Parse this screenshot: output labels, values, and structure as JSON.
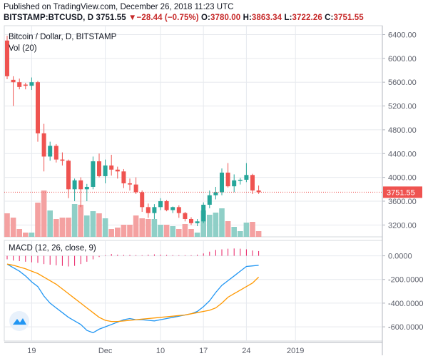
{
  "header": {
    "published": "Published on TradingView.com, December 26, 2018 11:23 UTC",
    "symbol": "BITSTAMP:BTCUSD, D",
    "last": "3751.55",
    "change_arrow": "▼",
    "change": "−28.44 (−0.75%)",
    "o_label": "O:",
    "o_value": "3780.00",
    "h_label": "H:",
    "h_value": "3863.34",
    "l_label": "L:",
    "l_value": "3722.26",
    "c_label": "C:",
    "c_value": "3751.55"
  },
  "colors": {
    "up": "#26a69a",
    "down": "#ef5350",
    "vol_up": "#8fcfc7",
    "vol_down": "#f4a1a1",
    "macd_line": "#2196f3",
    "signal_line": "#ff9800",
    "histogram": "#e91e63",
    "grid": "#e6e9ee",
    "axis_text": "#5d606b",
    "last_price_bg": "#ef5350"
  },
  "chart_data": [
    {
      "type": "candlestick",
      "title": "Bitcoin / Dollar, D, BITSTAMP",
      "volume_label": "Vol (20)",
      "last_price_label": "3751.55",
      "ylim": [
        3000,
        6550
      ],
      "y_ticks": [
        3200,
        3600,
        4000,
        4400,
        4800,
        5200,
        5600,
        6000,
        6400
      ],
      "y_tick_labels": [
        "3200.00",
        "3600.00",
        "4000.00",
        "4400.00",
        "4800.00",
        "5200.00",
        "5600.00",
        "6000.00",
        "6400.00"
      ],
      "x_tick_labels": [
        "19",
        "Dec",
        "10",
        "17",
        "24",
        "2019"
      ],
      "x_tick_index": [
        4,
        16,
        25,
        32,
        39,
        47
      ],
      "grid": true,
      "candles": [
        {
          "o": 6300,
          "h": 6380,
          "l": 5650,
          "c": 5700
        },
        {
          "o": 5640,
          "h": 5700,
          "l": 5200,
          "c": 5600
        },
        {
          "o": 5600,
          "h": 5660,
          "l": 5480,
          "c": 5520
        },
        {
          "o": 5560,
          "h": 5590,
          "l": 5480,
          "c": 5540
        },
        {
          "o": 5540,
          "h": 5680,
          "l": 5470,
          "c": 5600
        },
        {
          "o": 5600,
          "h": 5620,
          "l": 4600,
          "c": 4740
        },
        {
          "o": 4740,
          "h": 4900,
          "l": 4100,
          "c": 4350
        },
        {
          "o": 4350,
          "h": 4600,
          "l": 4280,
          "c": 4530
        },
        {
          "o": 4530,
          "h": 4560,
          "l": 4250,
          "c": 4300
        },
        {
          "o": 4300,
          "h": 4420,
          "l": 4200,
          "c": 4280
        },
        {
          "o": 4280,
          "h": 4300,
          "l": 3650,
          "c": 3800
        },
        {
          "o": 3800,
          "h": 3980,
          "l": 3600,
          "c": 3950
        },
        {
          "o": 3950,
          "h": 4000,
          "l": 3500,
          "c": 3800
        },
        {
          "o": 3800,
          "h": 3890,
          "l": 3600,
          "c": 3840
        },
        {
          "o": 3840,
          "h": 4350,
          "l": 3800,
          "c": 4270
        },
        {
          "o": 4270,
          "h": 4400,
          "l": 4000,
          "c": 4020
        },
        {
          "o": 4020,
          "h": 4300,
          "l": 3900,
          "c": 4200
        },
        {
          "o": 4200,
          "h": 4380,
          "l": 4030,
          "c": 4130
        },
        {
          "o": 4130,
          "h": 4180,
          "l": 3980,
          "c": 4100
        },
        {
          "o": 4100,
          "h": 4140,
          "l": 3820,
          "c": 3900
        },
        {
          "o": 3900,
          "h": 3980,
          "l": 3780,
          "c": 3880
        },
        {
          "o": 3880,
          "h": 4000,
          "l": 3720,
          "c": 3750
        },
        {
          "o": 3750,
          "h": 3780,
          "l": 3420,
          "c": 3500
        },
        {
          "o": 3500,
          "h": 3560,
          "l": 3320,
          "c": 3400
        },
        {
          "o": 3400,
          "h": 3550,
          "l": 3300,
          "c": 3500
        },
        {
          "o": 3500,
          "h": 3650,
          "l": 3450,
          "c": 3600
        },
        {
          "o": 3600,
          "h": 3620,
          "l": 3430,
          "c": 3450
        },
        {
          "o": 3450,
          "h": 3510,
          "l": 3400,
          "c": 3500
        },
        {
          "o": 3500,
          "h": 3530,
          "l": 3320,
          "c": 3400
        },
        {
          "o": 3400,
          "h": 3420,
          "l": 3260,
          "c": 3300
        },
        {
          "o": 3300,
          "h": 3330,
          "l": 3200,
          "c": 3230
        },
        {
          "o": 3230,
          "h": 3300,
          "l": 3180,
          "c": 3260
        },
        {
          "o": 3260,
          "h": 3580,
          "l": 3230,
          "c": 3540
        },
        {
          "o": 3540,
          "h": 3780,
          "l": 3480,
          "c": 3700
        },
        {
          "o": 3700,
          "h": 3840,
          "l": 3630,
          "c": 3750
        },
        {
          "o": 3750,
          "h": 4150,
          "l": 3700,
          "c": 4080
        },
        {
          "o": 4080,
          "h": 4240,
          "l": 3830,
          "c": 3850
        },
        {
          "o": 3850,
          "h": 4050,
          "l": 3750,
          "c": 3950
        },
        {
          "o": 3950,
          "h": 3990,
          "l": 3880,
          "c": 3960
        },
        {
          "o": 3960,
          "h": 4240,
          "l": 3920,
          "c": 4040
        },
        {
          "o": 4040,
          "h": 4060,
          "l": 3720,
          "c": 3780
        },
        {
          "o": 3780,
          "h": 3863,
          "l": 3722,
          "c": 3751
        }
      ],
      "volume_max": 100,
      "volume": [
        33,
        27,
        11,
        6,
        6,
        48,
        65,
        37,
        25,
        27,
        27,
        46,
        45,
        30,
        36,
        33,
        26,
        11,
        13,
        17,
        17,
        30,
        26,
        25,
        25,
        17,
        17,
        15,
        11,
        18,
        11,
        6,
        37,
        31,
        34,
        40,
        22,
        14,
        8,
        20,
        21,
        8
      ]
    },
    {
      "type": "line",
      "title": "MACD (12, 26, close, 9)",
      "ylim": [
        -720,
        130
      ],
      "y_ticks": [
        0,
        -200,
        -400,
        -600
      ],
      "y_tick_labels": [
        "0.0000",
        "-200.0000",
        "-400.0000",
        "-600.0000"
      ],
      "series": [
        {
          "values": [
            -70,
            -100,
            -130,
            -170,
            -220,
            -260,
            -340,
            -400,
            -440,
            -480,
            -520,
            -550,
            -580,
            -630,
            -650,
            -620,
            -600,
            -580,
            -560,
            -540,
            -530,
            -540,
            -540,
            -545,
            -550,
            -540,
            -530,
            -520,
            -510,
            -500,
            -490,
            -470,
            -430,
            -380,
            -310,
            -250,
            -210,
            -170,
            -130,
            -90,
            -85,
            -80
          ]
        },
        {
          "values": [
            -70,
            -80,
            -95,
            -110,
            -130,
            -150,
            -180,
            -210,
            -240,
            -280,
            -320,
            -360,
            -400,
            -440,
            -480,
            -520,
            -545,
            -555,
            -555,
            -550,
            -545,
            -540,
            -535,
            -530,
            -525,
            -520,
            -515,
            -510,
            -505,
            -500,
            -490,
            -480,
            -470,
            -460,
            -440,
            -400,
            -350,
            -320,
            -290,
            -260,
            -230,
            -180
          ]
        }
      ],
      "histogram": [
        -30,
        -40,
        -45,
        -50,
        -55,
        -60,
        -70,
        -75,
        -80,
        -85,
        -90,
        -85,
        -70,
        -50,
        -30,
        -10,
        5,
        15,
        10,
        8,
        8,
        6,
        5,
        10,
        12,
        10,
        8,
        6,
        5,
        5,
        5,
        10,
        20,
        35,
        50,
        55,
        60,
        62,
        60,
        55,
        45,
        40
      ]
    }
  ]
}
